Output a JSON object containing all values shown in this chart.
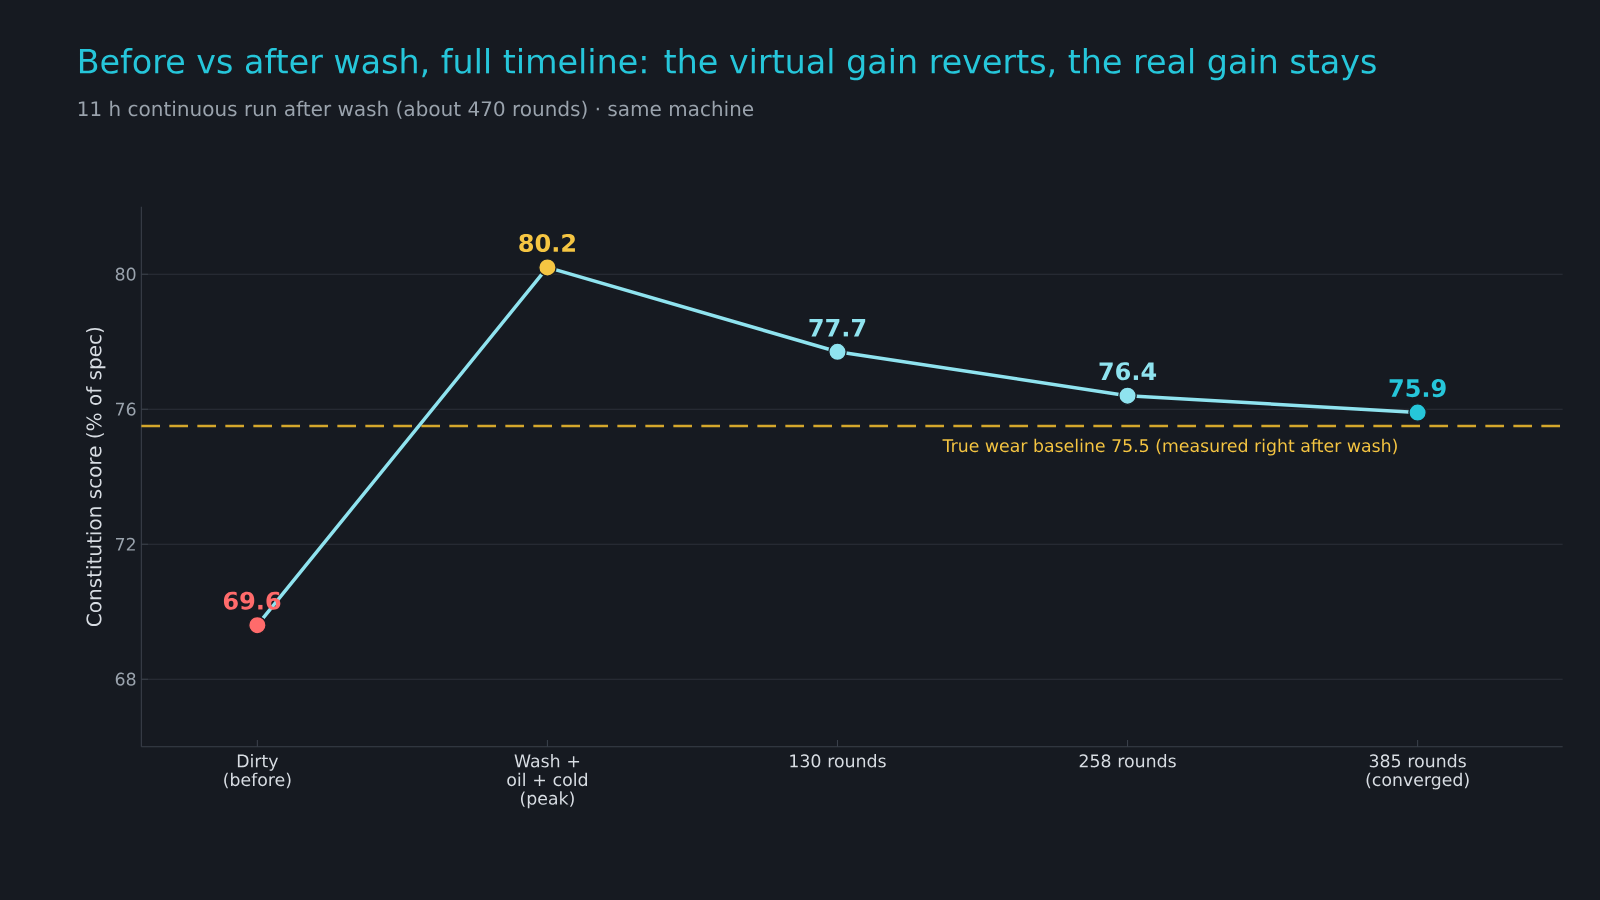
{
  "chart_data": {
    "type": "line",
    "title": "Before vs after wash, full timeline: the virtual gain reverts, the real gain stays",
    "subtitle": "11 h continuous run after wash (about 470 rounds) · same machine",
    "ylabel": "Constitution score (% of spec)",
    "categories": [
      "Dirty (before)",
      "Wash + oil + cold (peak)",
      "130 rounds",
      "258 rounds",
      "385 rounds (converged)"
    ],
    "series": [
      {
        "color": "#8fe3ef",
        "colors": [
          "#ff6b6b",
          "#f5c542",
          "#8fe3ef",
          "#8fe3ef",
          "#26c6da"
        ],
        "values": [
          69.6,
          80.2,
          77.7,
          76.4,
          75.9
        ],
        "value_labels": [
          "69.6",
          "80.2",
          "77.7",
          "76.4",
          "75.9"
        ]
      }
    ],
    "ylim": [
      66,
      82
    ],
    "yticks": [
      68,
      72,
      76,
      80
    ],
    "grid": "y",
    "marker": "circle",
    "line_style": "solid",
    "ref_lines": [
      {
        "axis": "y",
        "value": 75.5,
        "label": "True wear baseline 75.5 (measured right after wash)",
        "color": "#d4a72c",
        "line_style": "dashed"
      }
    ]
  }
}
